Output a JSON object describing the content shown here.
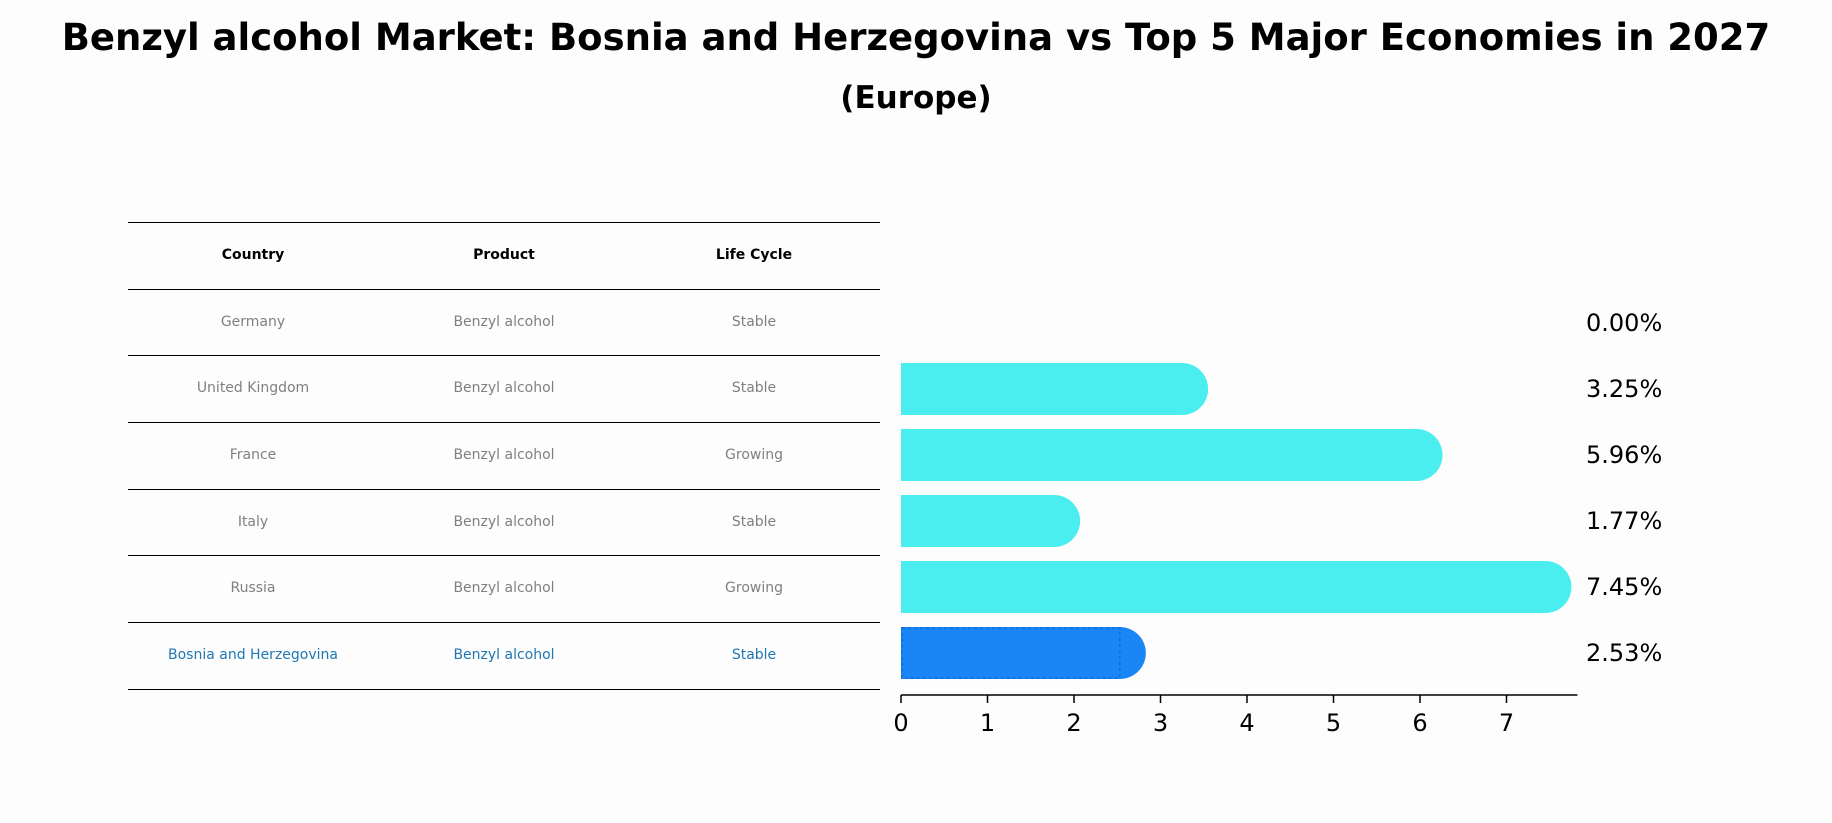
{
  "title": "Benzyl alcohol Market: Bosnia and Herzegovina vs Top 5 Major Economies in 2027",
  "subtitle": "(Europe)",
  "table": {
    "headers": [
      "Country",
      "Product",
      "Life Cycle"
    ],
    "rows": [
      [
        "Germany",
        "Benzyl alcohol",
        "Stable"
      ],
      [
        "United Kingdom",
        "Benzyl alcohol",
        "Stable"
      ],
      [
        "France",
        "Benzyl alcohol",
        "Growing"
      ],
      [
        "Italy",
        "Benzyl alcohol",
        "Stable"
      ],
      [
        "Russia",
        "Benzyl alcohol",
        "Growing"
      ],
      [
        "Bosnia and Herzegovina",
        "Benzyl alcohol",
        "Stable"
      ]
    ],
    "highlight_row": 5
  },
  "chart_data": {
    "type": "bar",
    "orientation": "horizontal",
    "categories": [
      "Germany",
      "United Kingdom",
      "France",
      "Italy",
      "Russia",
      "Bosnia and Herzegovina"
    ],
    "values": [
      0.0,
      3.25,
      5.96,
      1.77,
      7.45,
      2.53
    ],
    "value_labels": [
      "0.00%",
      "3.25%",
      "5.96%",
      "1.77%",
      "7.45%",
      "2.53%"
    ],
    "xlim": [
      0,
      7.82
    ],
    "xticks": [
      0,
      1,
      2,
      3,
      4,
      5,
      6,
      7
    ],
    "highlight_index": 5,
    "bar_color": "#4aeeee",
    "highlight_color": "#1a85f5"
  }
}
